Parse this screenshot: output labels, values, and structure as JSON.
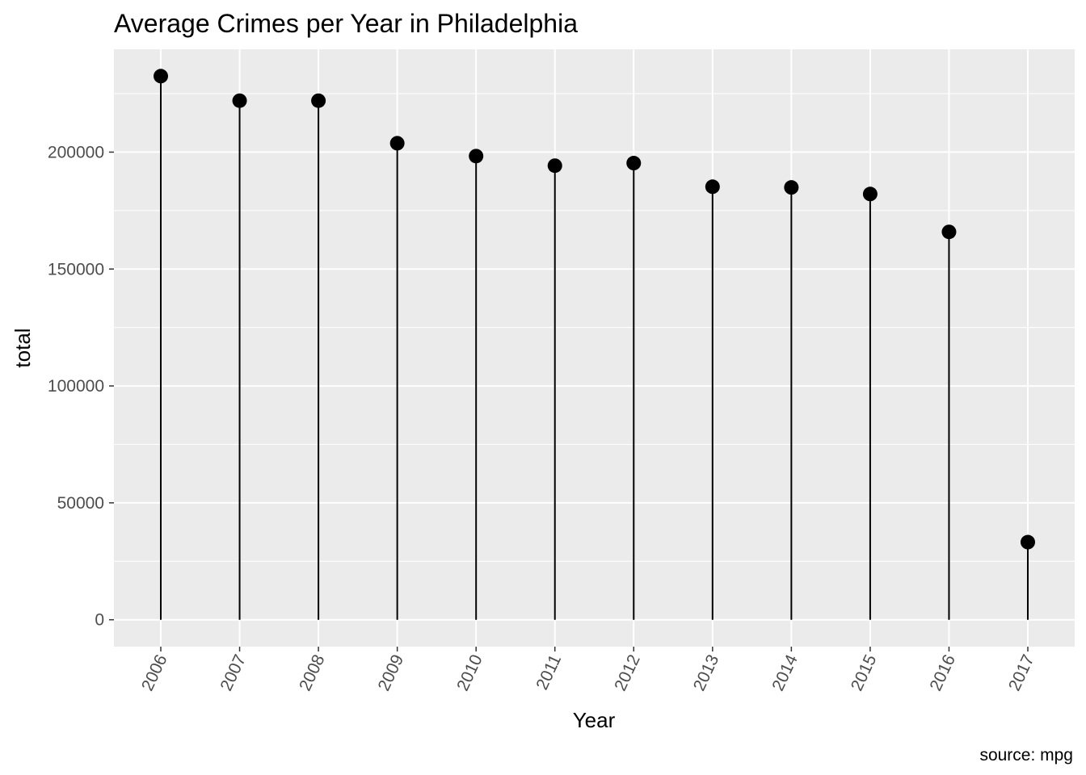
{
  "chart_data": {
    "type": "lollipop",
    "title": "Average Crimes per Year in Philadelphia",
    "xlabel": "Year",
    "ylabel": "total",
    "caption": "source: mpg",
    "categories": [
      "2006",
      "2007",
      "2008",
      "2009",
      "2010",
      "2011",
      "2012",
      "2013",
      "2014",
      "2015",
      "2016",
      "2017"
    ],
    "values": [
      232500,
      222000,
      222000,
      203800,
      198300,
      194200,
      195300,
      185200,
      184900,
      182100,
      165900,
      33200
    ],
    "ylim": [
      -11500,
      244000
    ],
    "yticks": [
      0,
      50000,
      100000,
      150000,
      200000
    ],
    "ytick_labels": [
      "0",
      "50000",
      "100000",
      "150000",
      "200000"
    ],
    "grid": true,
    "colors": {
      "panel": "#ebebeb",
      "grid": "#ffffff",
      "mark": "#000000",
      "tick_text": "#4d4d4d"
    }
  }
}
